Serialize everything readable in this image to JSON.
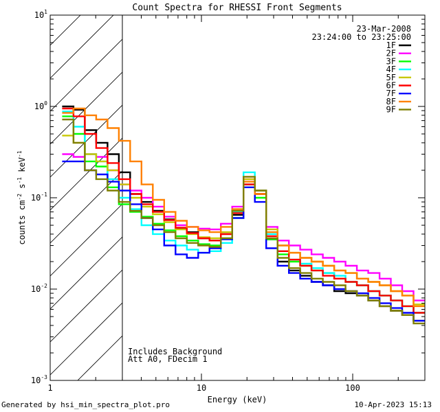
{
  "chart_data": {
    "type": "line",
    "title": "Count Spectra for RHESSI Front Segments",
    "xlabel": "Energy (keV)",
    "ylabel_main": "counts cm",
    "ylabel_sup1": "-2",
    "ylabel_mid1": " s",
    "ylabel_sup2": "-1",
    "ylabel_mid2": " keV",
    "ylabel_sup3": "-1",
    "xscale": "log",
    "yscale": "log",
    "xlim": [
      1,
      300
    ],
    "ylim": [
      0.001,
      10
    ],
    "x_ticks": [
      {
        "value": 1,
        "label": "1"
      },
      {
        "value": 10,
        "label": "10"
      },
      {
        "value": 100,
        "label": "100"
      }
    ],
    "y_ticks": [
      {
        "value": 0.001,
        "base": "10",
        "exp": "-3"
      },
      {
        "value": 0.01,
        "base": "10",
        "exp": "-2"
      },
      {
        "value": 0.1,
        "base": "10",
        "exp": "-1"
      },
      {
        "value": 1,
        "base": "10",
        "exp": "0"
      },
      {
        "value": 10,
        "base": "10",
        "exp": "1"
      }
    ],
    "hatched_region_kev": [
      1,
      3
    ],
    "date": "23-Mar-2008",
    "time_range": "23:24:00 to 23:25:00",
    "annotation_line1": "Includes Background",
    "annotation_line2": "Att A0, FDecim 1",
    "series": [
      {
        "name": "1F",
        "color": "#000000",
        "values": [
          1.0,
          0.92,
          0.55,
          0.4,
          0.3,
          0.19,
          0.11,
          0.09,
          0.072,
          0.058,
          0.046,
          0.042,
          0.036,
          0.034,
          0.04,
          0.065,
          0.14,
          0.11,
          0.035,
          0.02,
          0.016,
          0.014,
          0.012,
          0.011,
          0.0095,
          0.009,
          0.0085,
          0.0075,
          0.0065,
          0.0058,
          0.0052,
          0.0045
        ]
      },
      {
        "name": "2F",
        "color": "#ff00ff",
        "values": [
          0.3,
          0.28,
          0.3,
          0.28,
          0.2,
          0.14,
          0.12,
          0.1,
          0.08,
          0.062,
          0.05,
          0.048,
          0.046,
          0.045,
          0.052,
          0.08,
          0.16,
          0.12,
          0.048,
          0.034,
          0.03,
          0.027,
          0.024,
          0.022,
          0.02,
          0.018,
          0.016,
          0.015,
          0.013,
          0.011,
          0.0095,
          0.0075
        ]
      },
      {
        "name": "3F",
        "color": "#00ff00",
        "values": [
          0.78,
          0.5,
          0.25,
          0.22,
          0.13,
          0.085,
          0.07,
          0.062,
          0.052,
          0.044,
          0.038,
          0.034,
          0.031,
          0.03,
          0.036,
          0.06,
          0.13,
          0.1,
          0.035,
          0.024,
          0.02,
          0.018,
          0.016,
          0.015,
          0.013,
          0.012,
          0.011,
          0.0095,
          0.0085,
          0.0075,
          0.0065,
          0.0055
        ]
      },
      {
        "name": "4F",
        "color": "#00ffff",
        "values": [
          0.88,
          0.6,
          0.3,
          0.25,
          0.16,
          0.1,
          0.075,
          0.05,
          0.04,
          0.034,
          0.03,
          0.027,
          0.025,
          0.026,
          0.032,
          0.07,
          0.19,
          0.12,
          0.04,
          0.026,
          0.021,
          0.019,
          0.017,
          0.015,
          0.014,
          0.012,
          0.011,
          0.0095,
          0.0085,
          0.0075,
          0.0065,
          0.0055
        ]
      },
      {
        "name": "5F",
        "color": "#c8c800",
        "values": [
          0.48,
          0.4,
          0.3,
          0.25,
          0.2,
          0.14,
          0.1,
          0.08,
          0.066,
          0.054,
          0.045,
          0.04,
          0.037,
          0.036,
          0.042,
          0.075,
          0.16,
          0.12,
          0.045,
          0.03,
          0.025,
          0.022,
          0.02,
          0.018,
          0.016,
          0.015,
          0.013,
          0.012,
          0.011,
          0.0095,
          0.0085,
          0.0068
        ]
      },
      {
        "name": "6F",
        "color": "#ff0000",
        "values": [
          0.95,
          0.78,
          0.5,
          0.35,
          0.24,
          0.16,
          0.11,
          0.085,
          0.07,
          0.057,
          0.047,
          0.041,
          0.036,
          0.034,
          0.04,
          0.068,
          0.14,
          0.11,
          0.038,
          0.026,
          0.021,
          0.018,
          0.016,
          0.014,
          0.013,
          0.012,
          0.011,
          0.0095,
          0.0085,
          0.0075,
          0.0065,
          0.0055
        ]
      },
      {
        "name": "7F",
        "color": "#0000ff",
        "values": [
          0.25,
          0.25,
          0.2,
          0.18,
          0.15,
          0.12,
          0.085,
          0.06,
          0.045,
          0.03,
          0.024,
          0.022,
          0.025,
          0.028,
          0.035,
          0.06,
          0.13,
          0.09,
          0.028,
          0.018,
          0.015,
          0.013,
          0.012,
          0.011,
          0.01,
          0.0095,
          0.009,
          0.008,
          0.007,
          0.0062,
          0.0055,
          0.0045
        ]
      },
      {
        "name": "8F",
        "color": "#ff8000",
        "values": [
          0.85,
          0.95,
          0.8,
          0.72,
          0.58,
          0.42,
          0.25,
          0.14,
          0.095,
          0.07,
          0.056,
          0.048,
          0.044,
          0.042,
          0.048,
          0.075,
          0.15,
          0.11,
          0.042,
          0.03,
          0.025,
          0.022,
          0.02,
          0.018,
          0.016,
          0.015,
          0.013,
          0.012,
          0.011,
          0.0095,
          0.0085,
          0.0065
        ]
      },
      {
        "name": "9F",
        "color": "#7f7f00",
        "values": [
          0.72,
          0.4,
          0.2,
          0.16,
          0.12,
          0.09,
          0.072,
          0.06,
          0.05,
          0.042,
          0.036,
          0.032,
          0.03,
          0.029,
          0.036,
          0.072,
          0.17,
          0.12,
          0.036,
          0.022,
          0.017,
          0.015,
          0.013,
          0.012,
          0.011,
          0.0095,
          0.0085,
          0.0075,
          0.0065,
          0.0058,
          0.0052,
          0.0042
        ]
      }
    ]
  },
  "footer": {
    "generated_by": "Generated by hsi_min_spectra_plot.pro",
    "timestamp": "10-Apr-2023 15:13"
  }
}
